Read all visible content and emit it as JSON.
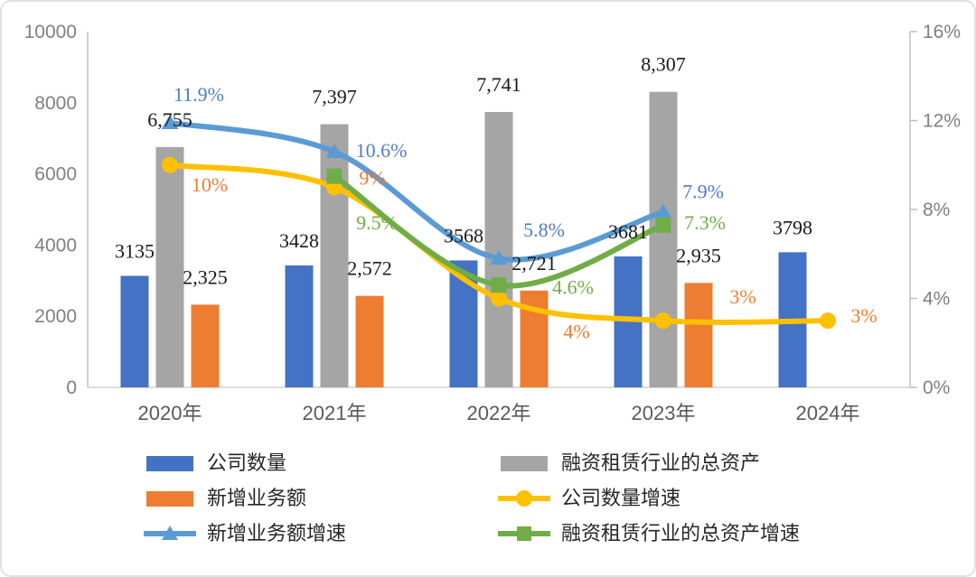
{
  "chart_data": {
    "type": "combo-bar-line",
    "title": "",
    "categories": [
      "2020年",
      "2021年",
      "2022年",
      "2023年",
      "2024年"
    ],
    "left_axis": {
      "min": 0,
      "max": 10000,
      "ticks": [
        "0",
        "2000",
        "4000",
        "6000",
        "8000",
        "10000"
      ]
    },
    "right_axis": {
      "min": 0,
      "max": 16,
      "ticks": [
        "0%",
        "4%",
        "8%",
        "12%",
        "16%"
      ]
    },
    "grid": false,
    "legend_position": "bottom",
    "bar_series": [
      {
        "name": "公司数量",
        "color": "#4472C4",
        "axis": "left",
        "values": [
          3135,
          3428,
          3568,
          3681,
          3798
        ],
        "labels": [
          "3135",
          "3428",
          "3568",
          "3681",
          "3798"
        ]
      },
      {
        "name": "融资租赁行业的总资产",
        "color": "#A5A5A5",
        "axis": "left",
        "values": [
          6755,
          7397,
          7741,
          8307,
          null
        ],
        "labels": [
          "6,755",
          "7,397",
          "7,741",
          "8,307",
          null
        ]
      },
      {
        "name": "新增业务额",
        "color": "#ED7D31",
        "axis": "left",
        "values": [
          2325,
          2572,
          2721,
          2935,
          null
        ],
        "labels": [
          "2,325",
          "2,572",
          "2,721",
          "2,935",
          null
        ]
      }
    ],
    "line_series": [
      {
        "name": "公司数量增速",
        "color": "#FFC000",
        "label_color": "#ED7D31",
        "marker": "circle",
        "axis": "right",
        "values": [
          10,
          9,
          4,
          3,
          3
        ],
        "labels": [
          "10%",
          "9%",
          "4%",
          "3%",
          "3%"
        ]
      },
      {
        "name": "新增业务额增速",
        "color": "#5B9BD5",
        "label_color": "#4E7DBE",
        "marker": "triangle",
        "axis": "right",
        "values": [
          11.9,
          10.6,
          5.8,
          7.9,
          null
        ],
        "labels": [
          "11.9%",
          "10.6%",
          "5.8%",
          "7.9%",
          null
        ]
      },
      {
        "name": "融资租赁行业的总资产增速",
        "color": "#70AD47",
        "label_color": "#70AD47",
        "marker": "square",
        "axis": "right",
        "values": [
          null,
          9.5,
          4.6,
          7.3,
          null
        ],
        "labels": [
          null,
          "9.5%",
          "4.6%",
          "7.3%",
          null
        ]
      }
    ],
    "legend": [
      {
        "label": "公司数量",
        "swatch": "bar",
        "color": "#4472C4"
      },
      {
        "label": "融资租赁行业的总资产",
        "swatch": "bar",
        "color": "#A5A5A5"
      },
      {
        "label": "新增业务额",
        "swatch": "bar",
        "color": "#ED7D31"
      },
      {
        "label": "公司数量增速",
        "swatch": "line-circle",
        "color": "#FFC000"
      },
      {
        "label": "新增业务额增速",
        "swatch": "line-triangle",
        "color": "#5B9BD5"
      },
      {
        "label": "融资租赁行业的总资产增速",
        "swatch": "line-square",
        "color": "#70AD47"
      }
    ]
  }
}
